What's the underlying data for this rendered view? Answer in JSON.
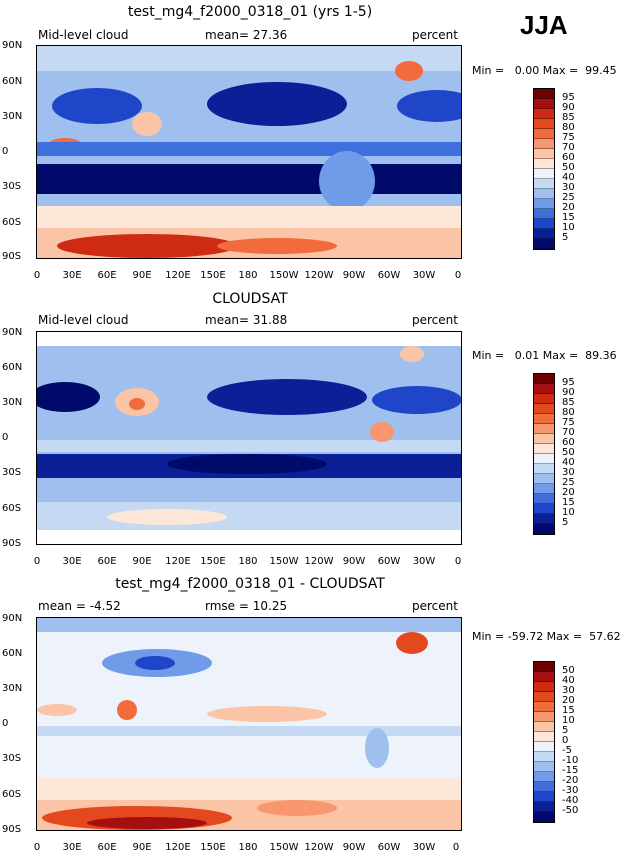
{
  "season": "JJA",
  "panels": [
    {
      "title": "test_mg4_f2000_0318_01 (yrs 1-5)",
      "left_label": "Mid-level cloud",
      "center_label": "mean=  27.36",
      "right_label": "percent",
      "minmax": "Min =   0.00 Max =  99.45",
      "colorbar_labels": [
        "95",
        "90",
        "85",
        "80",
        "75",
        "70",
        "60",
        "50",
        "40",
        "30",
        "25",
        "20",
        "15",
        "10",
        "5"
      ]
    },
    {
      "title": "CLOUDSAT",
      "left_label": "Mid-level cloud",
      "center_label": "mean=  31.88",
      "right_label": "percent",
      "minmax": "Min =   0.01 Max =  89.36",
      "colorbar_labels": [
        "95",
        "90",
        "85",
        "80",
        "75",
        "70",
        "60",
        "50",
        "40",
        "30",
        "25",
        "20",
        "15",
        "10",
        "5"
      ]
    },
    {
      "title": "test_mg4_f2000_0318_01 - CLOUDSAT",
      "left_label": "mean =  -4.52",
      "center_label": "rmse =  10.25",
      "right_label": "percent",
      "minmax": "Min = -59.72 Max =  57.62",
      "colorbar_labels": [
        "50",
        "40",
        "30",
        "20",
        "15",
        "10",
        "5",
        "0",
        "-5",
        "-10",
        "-15",
        "-20",
        "-30",
        "-40",
        "-50"
      ]
    }
  ],
  "lat_ticks": [
    "90N",
    "60N",
    "30N",
    "0",
    "30S",
    "60S",
    "90S"
  ],
  "lon_ticks": [
    "0",
    "30E",
    "60E",
    "90E",
    "120E",
    "150E",
    "180",
    "150W",
    "120W",
    "90W",
    "60W",
    "30W",
    "0"
  ],
  "colors": {
    "abs_scale": [
      "#6e0000",
      "#a50f0f",
      "#cf2a12",
      "#e4481e",
      "#f26b3c",
      "#f89670",
      "#fbc4a6",
      "#fde7d8",
      "#eef3fb",
      "#c5d9f3",
      "#9fc0ef",
      "#6f9be8",
      "#3f6fdc",
      "#1f45c8",
      "#0b1f96",
      "#000a6b"
    ],
    "diff_scale": [
      "#6e0000",
      "#a50f0f",
      "#cf2a12",
      "#e4481e",
      "#f26b3c",
      "#f89670",
      "#fbc4a6",
      "#fde7d8",
      "#eef3fb",
      "#c5d9f3",
      "#9fc0ef",
      "#6f9be8",
      "#3f6fdc",
      "#1f45c8",
      "#0b1f96",
      "#000a6b"
    ]
  }
}
